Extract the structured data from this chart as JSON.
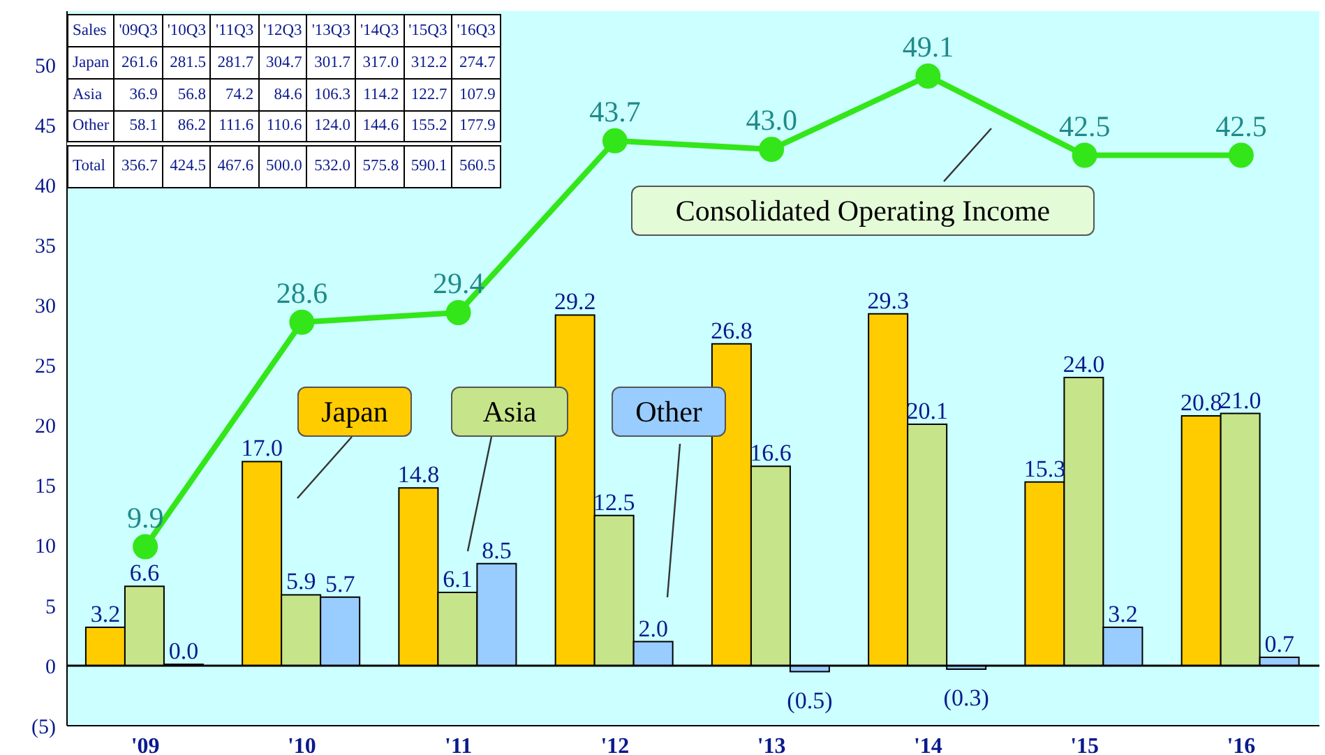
{
  "chart_data": {
    "type": "bar",
    "categories": [
      "'09",
      "'10",
      "'11",
      "'12",
      "'13",
      "'14",
      "'15",
      "'16"
    ],
    "series": [
      {
        "name": "Japan",
        "color": "#ffcc00",
        "values": [
          3.2,
          17.0,
          14.8,
          29.2,
          26.8,
          29.3,
          15.3,
          20.8
        ],
        "value_labels": [
          "3.2",
          "17.0",
          "14.8",
          "29.2",
          "26.8",
          "29.3",
          "15.3",
          "20.8"
        ]
      },
      {
        "name": "Asia",
        "color": "#c6e48a",
        "values": [
          6.6,
          5.9,
          6.1,
          12.5,
          16.6,
          20.1,
          24.0,
          21.0
        ],
        "value_labels": [
          "6.6",
          "5.9",
          "6.1",
          "12.5",
          "16.6",
          "20.1",
          "24.0",
          "21.0"
        ]
      },
      {
        "name": "Other",
        "color": "#99ccff",
        "values": [
          0.0,
          5.7,
          8.5,
          2.0,
          -0.5,
          -0.3,
          3.2,
          0.7
        ],
        "value_labels": [
          "0.0",
          "5.7",
          "8.5",
          "2.0",
          "(0.5)",
          "(0.3)",
          "3.2",
          "0.7"
        ]
      },
      {
        "name": "Consolidated Operating Income",
        "type": "line",
        "color": "#33e61a",
        "values": [
          9.9,
          28.6,
          29.4,
          43.7,
          43.0,
          49.1,
          42.5,
          42.5
        ],
        "value_labels": [
          "9.9",
          "28.6",
          "29.4",
          "43.7",
          "43.0",
          "49.1",
          "42.5",
          "42.5"
        ]
      }
    ],
    "ylim": [
      -5,
      54.5
    ],
    "yticks": [
      {
        "value": -5,
        "label": "(5)"
      },
      0,
      5,
      10,
      15,
      20,
      25,
      30,
      35,
      40,
      45,
      50
    ],
    "ref_lines": [
      {
        "axis": "y",
        "value": 0,
        "color": "#000000"
      }
    ],
    "marker": "circle",
    "grid": false,
    "annotations": [
      "Sales '09Q3 '10Q3 '11Q3 '12Q3 '13Q3 '14Q3 '15Q3 '16Q3",
      "Japan 261.6 281.5 281.7 304.7 301.7 317.0 312.2 274.7",
      "Asia 36.9 56.8 74.2 84.6 106.3 114.2 122.7 107.9",
      "Other 58.1 86.2 111.6 110.6 124.0 144.6 155.2 177.9",
      "Total 356.7 424.5 467.6 500.0 532.0 575.8 590.1 560.5"
    ]
  }
}
